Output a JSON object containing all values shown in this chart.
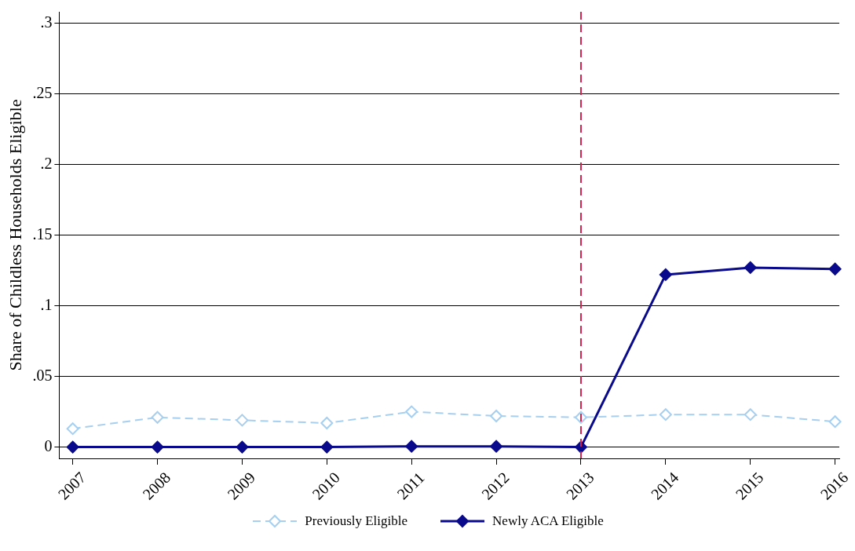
{
  "chart_data": {
    "type": "line",
    "ylabel": "Share of Childless Households Eligible",
    "x": [
      2007,
      2008,
      2009,
      2010,
      2011,
      2012,
      2013,
      2014,
      2015,
      2016
    ],
    "series": [
      {
        "name": "Previously Eligible",
        "color": "#a6cff0",
        "line_style": "dashed",
        "values": [
          0.013,
          0.021,
          0.019,
          0.017,
          0.025,
          0.022,
          0.021,
          0.023,
          0.023,
          0.018
        ]
      },
      {
        "name": "Newly ACA Eligible",
        "color": "#0a0a8c",
        "line_style": "solid",
        "values": [
          0,
          0,
          0,
          0,
          0.0005,
          0.0005,
          0,
          0.122,
          0.127,
          0.126
        ]
      }
    ],
    "xlim": [
      2006.84,
      2016.05
    ],
    "xticks": [
      2007,
      2008,
      2009,
      2010,
      2011,
      2012,
      2013,
      2014,
      2015,
      2016
    ],
    "ylim": [
      -0.008,
      0.308
    ],
    "yticks": [
      {
        "value": 0,
        "label": "0"
      },
      {
        "value": 0.05,
        "label": ".05"
      },
      {
        "value": 0.1,
        "label": ".1"
      },
      {
        "value": 0.15,
        "label": ".15"
      },
      {
        "value": 0.2,
        "label": ".2"
      },
      {
        "value": 0.25,
        "label": ".25"
      },
      {
        "value": 0.3,
        "label": ".3"
      }
    ],
    "ref_lines": [
      {
        "axis": "x",
        "value": 2013,
        "color": "#d6204f",
        "line_style": "dashed"
      }
    ],
    "grid": "y",
    "legend": "bottom",
    "marker": "diamond"
  }
}
